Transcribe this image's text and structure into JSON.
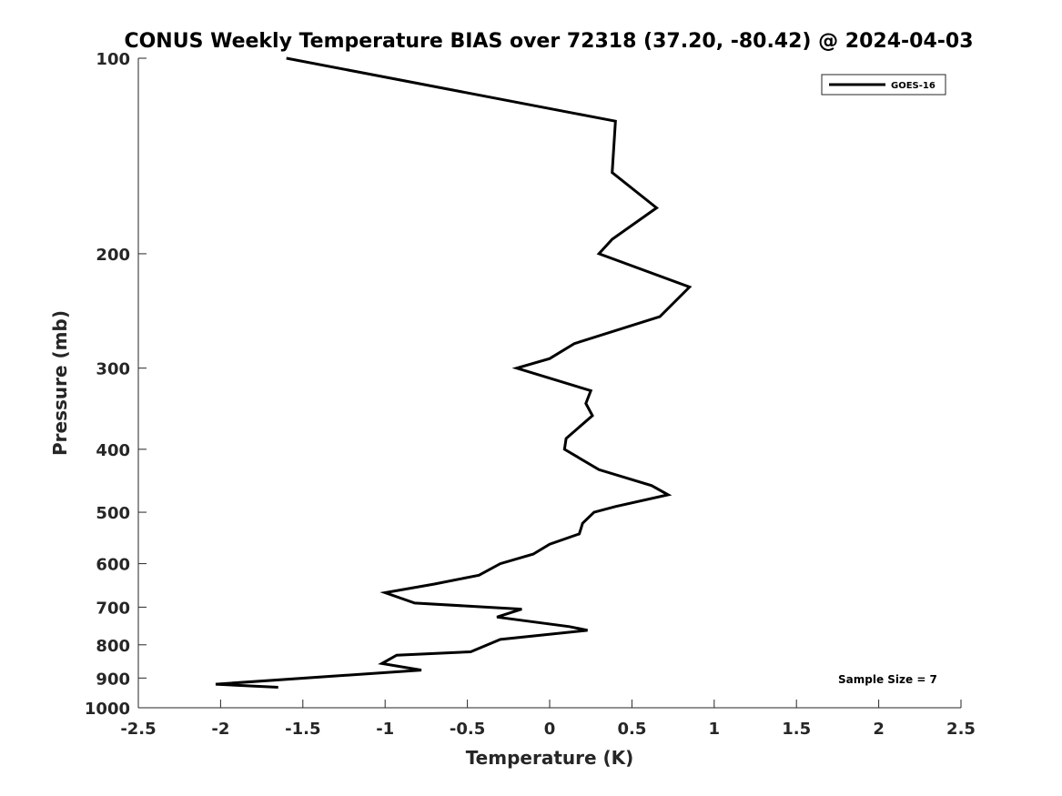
{
  "chart_data": {
    "type": "line",
    "title": "CONUS Weekly Temperature BIAS over 72318 (37.20, -80.42) @ 2024-04-03",
    "xlabel": "Temperature (K)",
    "ylabel": "Pressure (mb)",
    "xlim": [
      -2.5,
      2.5
    ],
    "ylim": [
      100,
      1000
    ],
    "y_scale": "log",
    "y_reversed": true,
    "grid": false,
    "legend_position": "top-right",
    "x_ticks": [
      "-2.5",
      "-2",
      "-1.5",
      "-1",
      "-0.5",
      "0",
      "0.5",
      "1",
      "1.5",
      "2",
      "2.5"
    ],
    "y_ticks": [
      "100",
      "200",
      "300",
      "400",
      "500",
      "600",
      "700",
      "800",
      "900",
      "1000"
    ],
    "annotation": "Sample Size = 7",
    "series": [
      {
        "name": "GOES-16",
        "color": "#000000",
        "points": [
          {
            "x": -1.6,
            "y": 100
          },
          {
            "x": 0.4,
            "y": 125
          },
          {
            "x": 0.38,
            "y": 150
          },
          {
            "x": 0.65,
            "y": 170
          },
          {
            "x": 0.38,
            "y": 190
          },
          {
            "x": 0.3,
            "y": 200
          },
          {
            "x": 0.85,
            "y": 225
          },
          {
            "x": 0.67,
            "y": 250
          },
          {
            "x": 0.15,
            "y": 275
          },
          {
            "x": 0.0,
            "y": 290
          },
          {
            "x": -0.2,
            "y": 300
          },
          {
            "x": 0.25,
            "y": 325
          },
          {
            "x": 0.22,
            "y": 340
          },
          {
            "x": 0.26,
            "y": 355
          },
          {
            "x": 0.1,
            "y": 385
          },
          {
            "x": 0.09,
            "y": 400
          },
          {
            "x": 0.3,
            "y": 430
          },
          {
            "x": 0.62,
            "y": 455
          },
          {
            "x": 0.72,
            "y": 470
          },
          {
            "x": 0.4,
            "y": 490
          },
          {
            "x": 0.27,
            "y": 500
          },
          {
            "x": 0.2,
            "y": 520
          },
          {
            "x": 0.19,
            "y": 530
          },
          {
            "x": 0.18,
            "y": 540
          },
          {
            "x": 0.0,
            "y": 560
          },
          {
            "x": -0.1,
            "y": 580
          },
          {
            "x": -0.3,
            "y": 600
          },
          {
            "x": -0.43,
            "y": 625
          },
          {
            "x": -0.7,
            "y": 645
          },
          {
            "x": -1.0,
            "y": 665
          },
          {
            "x": -0.82,
            "y": 690
          },
          {
            "x": -0.17,
            "y": 705
          },
          {
            "x": -0.32,
            "y": 725
          },
          {
            "x": 0.12,
            "y": 750
          },
          {
            "x": 0.23,
            "y": 760
          },
          {
            "x": -0.3,
            "y": 785
          },
          {
            "x": -0.48,
            "y": 820
          },
          {
            "x": -0.93,
            "y": 830
          },
          {
            "x": -1.02,
            "y": 855
          },
          {
            "x": -0.78,
            "y": 875
          },
          {
            "x": -2.03,
            "y": 920
          },
          {
            "x": -1.65,
            "y": 930
          }
        ]
      }
    ]
  }
}
